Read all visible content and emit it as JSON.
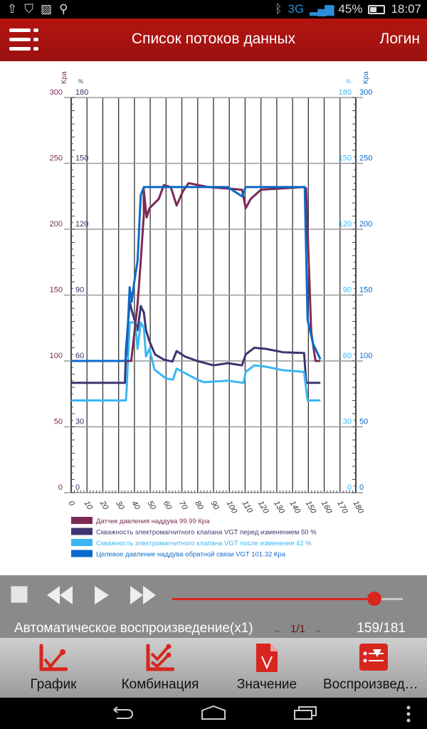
{
  "status_bar": {
    "network": "3G",
    "battery": "45%",
    "time": "18:07",
    "icons": [
      "upload-icon",
      "shield-icon",
      "image-icon",
      "search-icon",
      "bluetooth-icon",
      "signal-icon",
      "battery-icon"
    ]
  },
  "header": {
    "title": "Список потоков данных",
    "login": "Логин"
  },
  "chart_data": {
    "type": "line",
    "x_ticks": [
      "0",
      "10",
      "20",
      "30",
      "40",
      "50",
      "60",
      "70",
      "80",
      "90",
      "100",
      "110",
      "120",
      "130",
      "140",
      "150",
      "160",
      "170",
      "180"
    ],
    "xlim": [
      0,
      180
    ],
    "left_axis": {
      "unit": "Kpa",
      "ticks": [
        "300",
        "250",
        "200",
        "150",
        "100",
        "50",
        "0"
      ],
      "ylim": [
        0,
        300
      ],
      "color": "#7b2a55"
    },
    "left_pct_axis": {
      "unit": "%",
      "ticks": [
        "180",
        "150",
        "120",
        "90",
        "60",
        "30",
        "0"
      ],
      "ylim": [
        0,
        180
      ],
      "color": "#3d3470"
    },
    "right_pct_axis": {
      "unit": "%",
      "ticks": [
        "180",
        "150",
        "120",
        "90",
        "60",
        "30",
        "0"
      ],
      "ylim": [
        0,
        180
      ],
      "color": "#3ab6f4"
    },
    "right_axis": {
      "unit": "Kpa",
      "ticks": [
        "300",
        "250",
        "200",
        "150",
        "100",
        "50",
        "0"
      ],
      "ylim": [
        0,
        300
      ],
      "color": "#0a6ac8"
    },
    "grid": true,
    "legend_position": "bottom",
    "series": [
      {
        "name": "Датчик давления наддува 99.99 Кра",
        "axis": "kpa",
        "color": "#7b2a55",
        "points": [
          [
            0,
            100
          ],
          [
            36,
            100
          ],
          [
            38,
            100
          ],
          [
            42,
            143
          ],
          [
            44,
            176
          ],
          [
            46,
            212
          ],
          [
            45.8,
            231
          ],
          [
            47.7,
            209
          ],
          [
            49.5,
            216
          ],
          [
            55.4,
            223
          ],
          [
            58.6,
            233.5
          ],
          [
            63,
            232
          ],
          [
            66.7,
            218
          ],
          [
            70.7,
            229
          ],
          [
            74.3,
            235
          ],
          [
            87,
            232
          ],
          [
            108,
            230
          ],
          [
            110.4,
            216
          ],
          [
            113.5,
            223
          ],
          [
            120,
            230
          ],
          [
            147,
            232
          ],
          [
            148.6,
            231
          ],
          [
            151.8,
            122
          ],
          [
            154.5,
            100
          ],
          [
            157.6,
            99.99
          ]
        ]
      },
      {
        "name": "Скважность электромагнитного клапана VGT перед изменением 50 %",
        "axis": "pct",
        "color": "#3d3470",
        "points": [
          [
            0,
            50
          ],
          [
            34,
            50
          ],
          [
            34.6,
            64.5
          ],
          [
            37,
            87
          ],
          [
            38.3,
            83
          ],
          [
            42,
            74
          ],
          [
            44,
            85
          ],
          [
            46,
            82
          ],
          [
            47.3,
            74
          ],
          [
            49.5,
            69
          ],
          [
            53,
            63
          ],
          [
            58.6,
            60.6
          ],
          [
            64,
            59.7
          ],
          [
            66.7,
            64.5
          ],
          [
            72,
            62
          ],
          [
            79.7,
            60
          ],
          [
            90,
            58
          ],
          [
            99,
            59
          ],
          [
            108,
            58
          ],
          [
            110.4,
            63
          ],
          [
            115.8,
            66
          ],
          [
            123,
            65.5
          ],
          [
            133.8,
            64
          ],
          [
            147.3,
            63.6
          ],
          [
            148.6,
            50
          ],
          [
            157.6,
            50
          ]
        ]
      },
      {
        "name": "Скважность электромагнитного клапана VGT после изменения 42 %",
        "axis": "pct",
        "color": "#3ab6f4",
        "points": [
          [
            0,
            42
          ],
          [
            34.6,
            42
          ],
          [
            35,
            46
          ],
          [
            37,
            77.5
          ],
          [
            40.5,
            77.5
          ],
          [
            42,
            65.5
          ],
          [
            44,
            77.5
          ],
          [
            46,
            75
          ],
          [
            47.3,
            62
          ],
          [
            49.5,
            65.5
          ],
          [
            52.7,
            56
          ],
          [
            60,
            52
          ],
          [
            64.4,
            51.5
          ],
          [
            66.7,
            56.5
          ],
          [
            79.7,
            51.5
          ],
          [
            84,
            50.3
          ],
          [
            99,
            51
          ],
          [
            109,
            50
          ],
          [
            110.4,
            55
          ],
          [
            115.8,
            58
          ],
          [
            123,
            57.4
          ],
          [
            133.8,
            55.8
          ],
          [
            147.3,
            55
          ],
          [
            149.5,
            42
          ],
          [
            157.6,
            42
          ]
        ]
      },
      {
        "name": "Целевое давление наддува обратной связи VGT 101.32 Кра",
        "axis": "kpa",
        "color": "#0a6ac8",
        "points": [
          [
            0,
            100
          ],
          [
            34,
            100
          ],
          [
            35,
            105
          ],
          [
            37,
            156
          ],
          [
            38.3,
            145
          ],
          [
            39.8,
            159
          ],
          [
            42,
            176
          ],
          [
            44,
            226
          ],
          [
            46,
            232
          ],
          [
            99,
            232
          ],
          [
            108,
            225
          ],
          [
            110.4,
            232
          ],
          [
            147.7,
            232
          ],
          [
            149.5,
            131
          ],
          [
            153,
            113
          ],
          [
            157.6,
            101.32
          ]
        ]
      }
    ]
  },
  "controls": {
    "auto_play": "Автоматическое воспроизведение(x1)",
    "page": "1/1",
    "counter": "159/181",
    "progress": 0.878
  },
  "tabs": [
    {
      "label": "График"
    },
    {
      "label": "Комбинация"
    },
    {
      "label": "Значение"
    },
    {
      "label": "Воспроизведение"
    }
  ]
}
